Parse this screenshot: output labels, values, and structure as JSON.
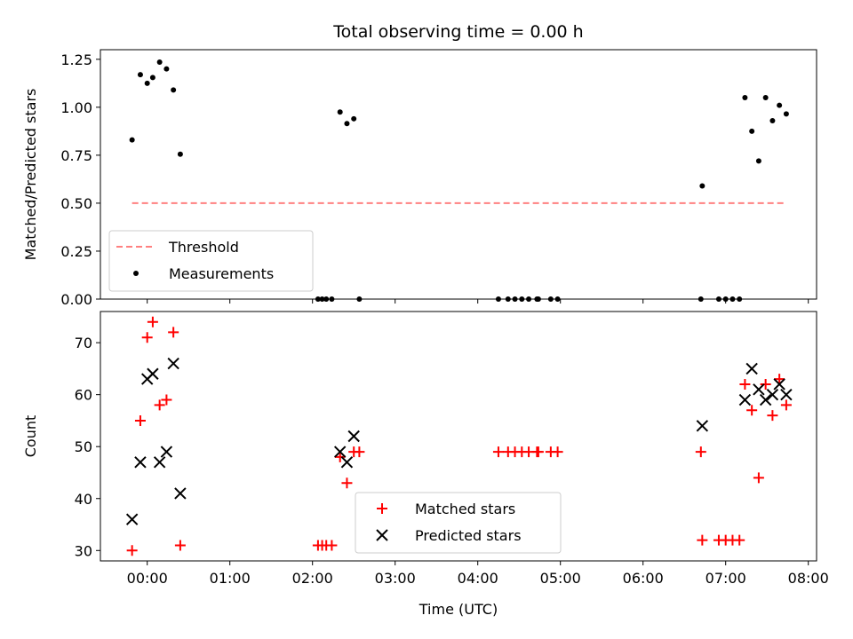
{
  "chart_data": [
    {
      "type": "scatter",
      "title": "Total observing time = 0.00 h",
      "xlabel": "",
      "ylabel": "Matched/Predicted stars",
      "xlim": [
        "23:26",
        "08:06"
      ],
      "ylim": [
        0,
        1.3
      ],
      "yticks": [
        "0.00",
        "0.25",
        "0.50",
        "0.75",
        "1.00",
        "1.25"
      ],
      "legend_position": "lower-left",
      "series": [
        {
          "name": "Threshold",
          "style": "dashed-line",
          "color": "#ff8080",
          "points": [
            {
              "x": "23:49",
              "y": 0.5
            },
            {
              "x": "07:44",
              "y": 0.5
            }
          ]
        },
        {
          "name": "Measurements",
          "style": "dot",
          "color": "#000000",
          "points": [
            {
              "x": "23:49",
              "y": 0.83
            },
            {
              "x": "23:55",
              "y": 1.17
            },
            {
              "x": "00:00",
              "y": 1.125
            },
            {
              "x": "00:04",
              "y": 1.155
            },
            {
              "x": "00:09",
              "y": 1.235
            },
            {
              "x": "00:14",
              "y": 1.2
            },
            {
              "x": "00:19",
              "y": 1.09
            },
            {
              "x": "00:24",
              "y": 0.755
            },
            {
              "x": "02:04",
              "y": 0.0
            },
            {
              "x": "02:07",
              "y": 0.0
            },
            {
              "x": "02:10",
              "y": 0.0
            },
            {
              "x": "02:14",
              "y": 0.0
            },
            {
              "x": "02:20",
              "y": 0.975
            },
            {
              "x": "02:25",
              "y": 0.915
            },
            {
              "x": "02:30",
              "y": 0.94
            },
            {
              "x": "02:34",
              "y": 0.0
            },
            {
              "x": "04:15",
              "y": 0.0
            },
            {
              "x": "04:22",
              "y": 0.0
            },
            {
              "x": "04:27",
              "y": 0.0
            },
            {
              "x": "04:32",
              "y": 0.0
            },
            {
              "x": "04:37",
              "y": 0.0
            },
            {
              "x": "04:43",
              "y": 0.0
            },
            {
              "x": "04:44",
              "y": 0.0
            },
            {
              "x": "04:53",
              "y": 0.0
            },
            {
              "x": "04:58",
              "y": 0.0
            },
            {
              "x": "06:42",
              "y": 0.0
            },
            {
              "x": "06:43",
              "y": 0.59
            },
            {
              "x": "06:55",
              "y": 0.0
            },
            {
              "x": "07:00",
              "y": 0.0
            },
            {
              "x": "07:05",
              "y": 0.0
            },
            {
              "x": "07:10",
              "y": 0.0
            },
            {
              "x": "07:14",
              "y": 1.05
            },
            {
              "x": "07:19",
              "y": 0.875
            },
            {
              "x": "07:24",
              "y": 0.72
            },
            {
              "x": "07:29",
              "y": 1.05
            },
            {
              "x": "07:34",
              "y": 0.93
            },
            {
              "x": "07:39",
              "y": 1.01
            },
            {
              "x": "07:44",
              "y": 0.965
            }
          ]
        }
      ]
    },
    {
      "type": "scatter",
      "title": "",
      "xlabel": "Time (UTC)",
      "ylabel": "Count",
      "xlim": [
        "23:26",
        "08:06"
      ],
      "ylim": [
        28,
        76
      ],
      "xticks": [
        "00:00",
        "01:00",
        "02:00",
        "03:00",
        "04:00",
        "05:00",
        "06:00",
        "07:00",
        "08:00"
      ],
      "yticks": [
        "30",
        "40",
        "50",
        "60",
        "70"
      ],
      "legend_position": "lower-center",
      "series": [
        {
          "name": "Matched stars",
          "marker": "plus",
          "color": "#ff0000",
          "points": [
            {
              "x": "23:49",
              "y": 30
            },
            {
              "x": "23:55",
              "y": 55
            },
            {
              "x": "00:00",
              "y": 71
            },
            {
              "x": "00:04",
              "y": 74
            },
            {
              "x": "00:09",
              "y": 58
            },
            {
              "x": "00:14",
              "y": 59
            },
            {
              "x": "00:19",
              "y": 72
            },
            {
              "x": "00:24",
              "y": 31
            },
            {
              "x": "02:04",
              "y": 31
            },
            {
              "x": "02:07",
              "y": 31
            },
            {
              "x": "02:10",
              "y": 31
            },
            {
              "x": "02:14",
              "y": 31
            },
            {
              "x": "02:20",
              "y": 48
            },
            {
              "x": "02:25",
              "y": 43
            },
            {
              "x": "02:30",
              "y": 49
            },
            {
              "x": "02:34",
              "y": 49
            },
            {
              "x": "04:15",
              "y": 49
            },
            {
              "x": "04:22",
              "y": 49
            },
            {
              "x": "04:27",
              "y": 49
            },
            {
              "x": "04:32",
              "y": 49
            },
            {
              "x": "04:37",
              "y": 49
            },
            {
              "x": "04:43",
              "y": 49
            },
            {
              "x": "04:44",
              "y": 49
            },
            {
              "x": "04:53",
              "y": 49
            },
            {
              "x": "04:58",
              "y": 49
            },
            {
              "x": "06:42",
              "y": 49
            },
            {
              "x": "06:43",
              "y": 32
            },
            {
              "x": "06:55",
              "y": 32
            },
            {
              "x": "07:00",
              "y": 32
            },
            {
              "x": "07:05",
              "y": 32
            },
            {
              "x": "07:10",
              "y": 32
            },
            {
              "x": "07:14",
              "y": 62
            },
            {
              "x": "07:19",
              "y": 57
            },
            {
              "x": "07:24",
              "y": 44
            },
            {
              "x": "07:29",
              "y": 62
            },
            {
              "x": "07:34",
              "y": 56
            },
            {
              "x": "07:39",
              "y": 63
            },
            {
              "x": "07:44",
              "y": 58
            }
          ]
        },
        {
          "name": "Predicted stars",
          "marker": "x",
          "color": "#000000",
          "points": [
            {
              "x": "23:49",
              "y": 36
            },
            {
              "x": "23:55",
              "y": 47
            },
            {
              "x": "00:00",
              "y": 63
            },
            {
              "x": "00:04",
              "y": 64
            },
            {
              "x": "00:09",
              "y": 47
            },
            {
              "x": "00:14",
              "y": 49
            },
            {
              "x": "00:19",
              "y": 66
            },
            {
              "x": "00:24",
              "y": 41
            },
            {
              "x": "02:20",
              "y": 49
            },
            {
              "x": "02:25",
              "y": 47
            },
            {
              "x": "02:30",
              "y": 52
            },
            {
              "x": "06:43",
              "y": 54
            },
            {
              "x": "07:14",
              "y": 59
            },
            {
              "x": "07:19",
              "y": 65
            },
            {
              "x": "07:24",
              "y": 61
            },
            {
              "x": "07:29",
              "y": 59
            },
            {
              "x": "07:34",
              "y": 60
            },
            {
              "x": "07:39",
              "y": 62
            },
            {
              "x": "07:44",
              "y": 60
            }
          ]
        }
      ]
    }
  ]
}
